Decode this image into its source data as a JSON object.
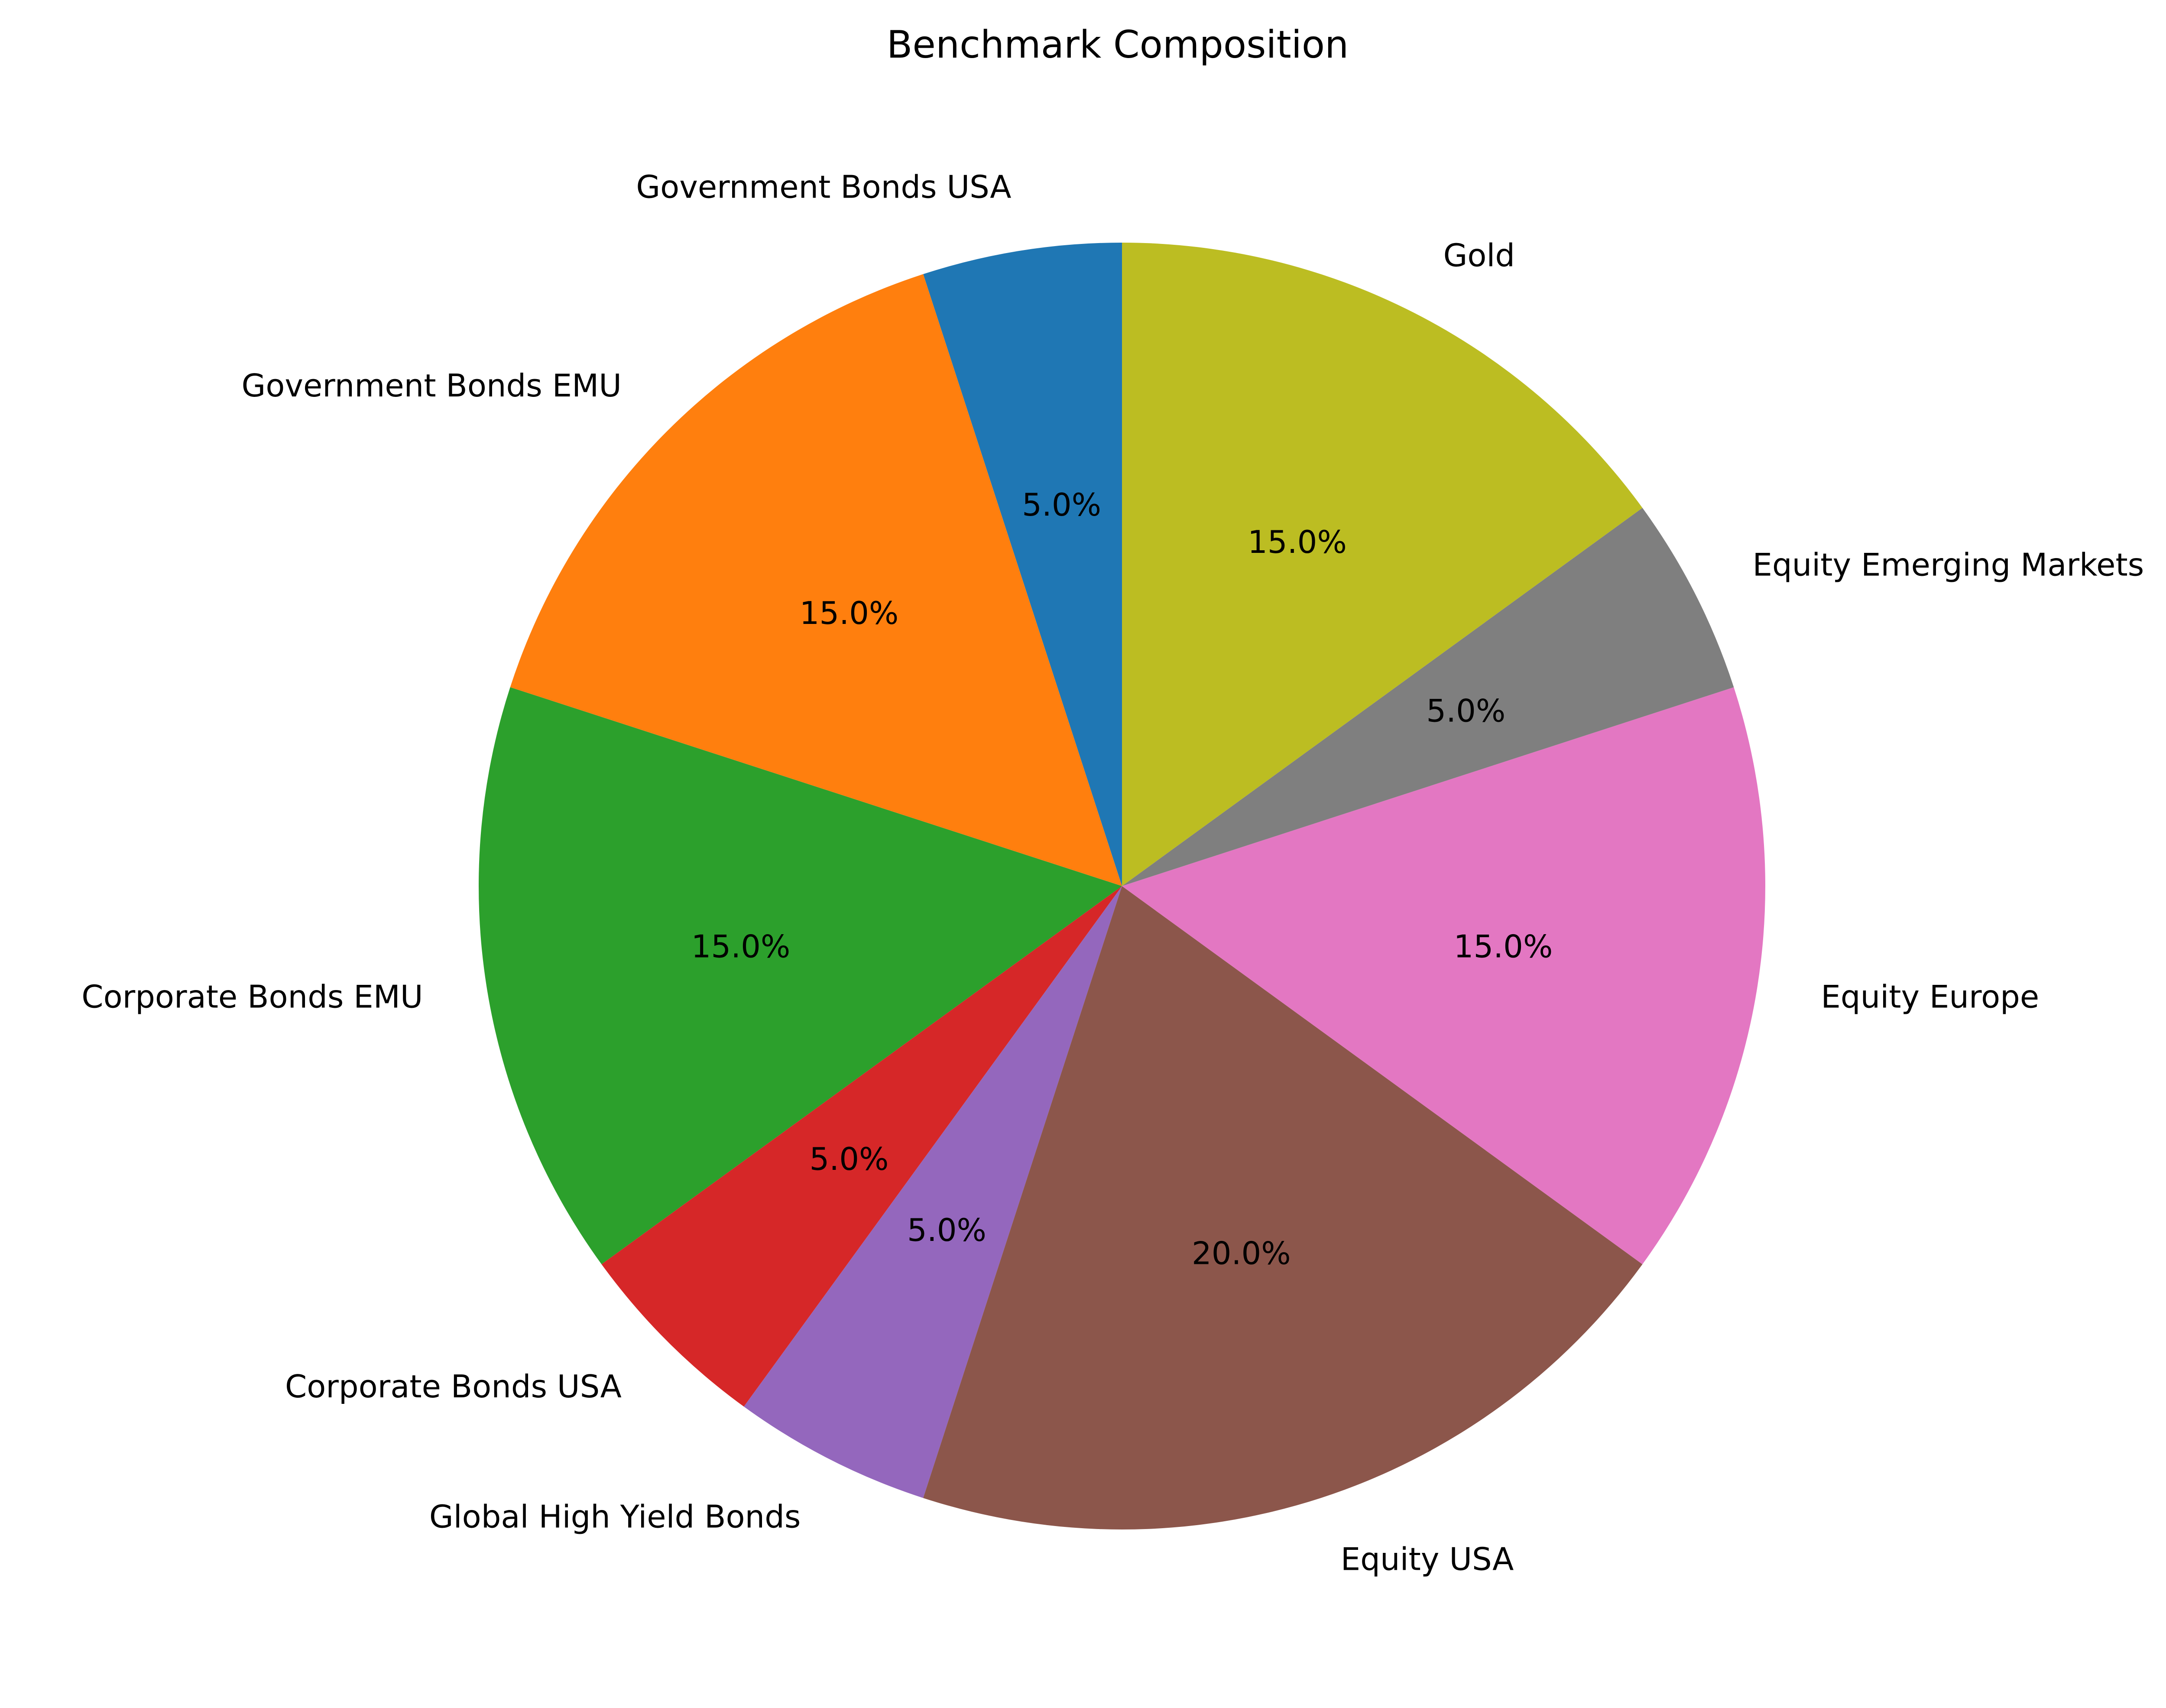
{
  "chart_data": {
    "type": "pie",
    "title": "Benchmark Composition",
    "start_angle_deg": 90,
    "direction": "counterclockwise",
    "pct_format": "{:.1f}%",
    "slices": [
      {
        "label": "Government Bonds USA",
        "value": 5.0,
        "pct_text": "5.0%",
        "color": "#1f77b4"
      },
      {
        "label": "Government Bonds EMU",
        "value": 15.0,
        "pct_text": "15.0%",
        "color": "#ff7f0e"
      },
      {
        "label": "Corporate Bonds EMU",
        "value": 15.0,
        "pct_text": "15.0%",
        "color": "#2ca02c"
      },
      {
        "label": "Corporate Bonds USA",
        "value": 5.0,
        "pct_text": "5.0%",
        "color": "#d62728"
      },
      {
        "label": "Global High Yield Bonds",
        "value": 5.0,
        "pct_text": "5.0%",
        "color": "#9467bd"
      },
      {
        "label": "Equity USA",
        "value": 20.0,
        "pct_text": "20.0%",
        "color": "#8c564b"
      },
      {
        "label": "Equity Europe",
        "value": 15.0,
        "pct_text": "15.0%",
        "color": "#e377c2"
      },
      {
        "label": "Equity Emerging Markets",
        "value": 5.0,
        "pct_text": "5.0%",
        "color": "#7f7f7f"
      },
      {
        "label": "Gold",
        "value": 15.0,
        "pct_text": "15.0%",
        "color": "#bcbd22"
      }
    ]
  }
}
